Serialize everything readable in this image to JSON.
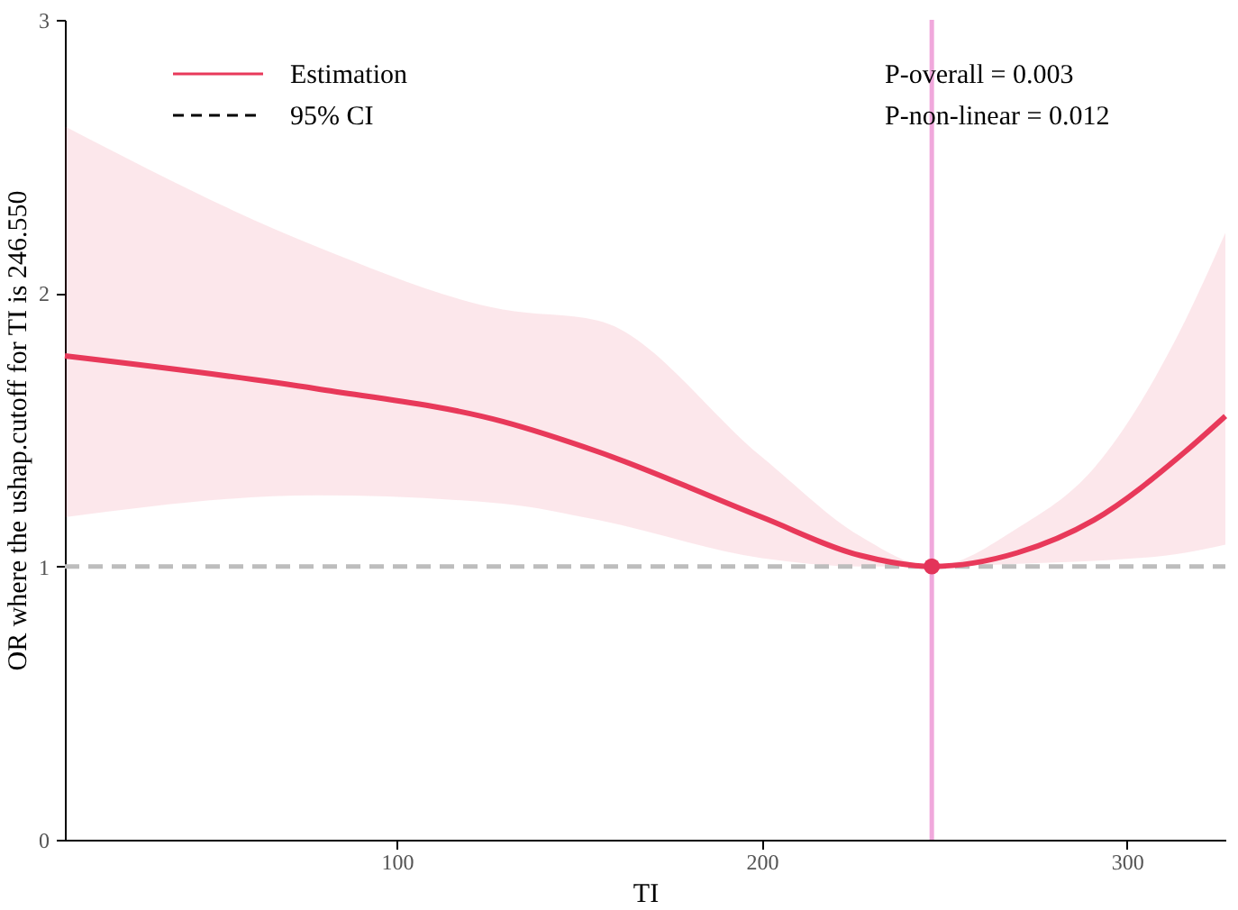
{
  "chart_data": {
    "type": "line",
    "xlabel": "TI",
    "ylabel": "OR where the ushap.cutoff for TI is 246.550",
    "xlim": [
      9,
      327
    ],
    "xticks": [
      100,
      200,
      300
    ],
    "ylim": [
      0,
      3
    ],
    "yticks": [
      0,
      1,
      2,
      3
    ],
    "grid": false,
    "legend": "top left",
    "series": [
      {
        "name": "Estimation",
        "color": "#e8395a",
        "x": [
          9,
          78,
          129,
          155,
          200,
          227,
          246.55,
          270,
          291,
          316,
          327
        ],
        "values": [
          1.77,
          1.65,
          1.53,
          1.42,
          1.18,
          1.04,
          1.0,
          1.05,
          1.17,
          1.42,
          1.55
        ],
        "lower": [
          1.18,
          1.26,
          1.23,
          1.17,
          1.03,
          1.0,
          1.0,
          1.01,
          1.02,
          1.05,
          1.08
        ],
        "upper": [
          2.61,
          2.17,
          1.94,
          1.9,
          1.4,
          1.11,
          1.0,
          1.14,
          1.36,
          1.9,
          2.22
        ]
      },
      {
        "type": "scatter",
        "color": "#e3345a",
        "x": [
          246.55
        ],
        "values": [
          1.0
        ],
        "marker": "circle"
      }
    ],
    "ref_lines": [
      {
        "axis": "y",
        "value": 1,
        "color": "#bdbdbd",
        "line_style": "dashed"
      },
      {
        "axis": "x",
        "value": 246.55,
        "color": "#f0a8dc",
        "line_style": "solid"
      }
    ],
    "annotations": [
      "95% CI",
      "P-overall = 0.003",
      "P-non-linear = 0.012"
    ]
  }
}
